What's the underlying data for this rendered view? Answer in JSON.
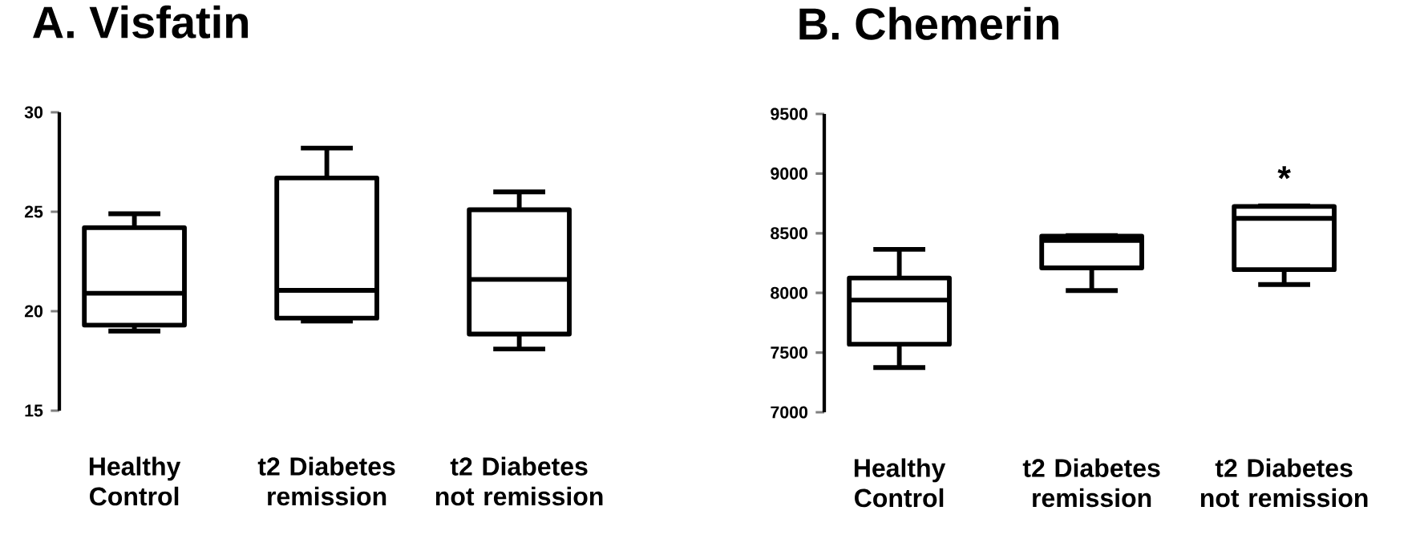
{
  "chart_data": [
    {
      "type": "box",
      "title": "A. Visfatin",
      "categories": [
        "Healthy Control",
        "t2 Diabetes remission",
        "t2 Diabetes not remission"
      ],
      "boxes": [
        {
          "low": 19.0,
          "q1": 19.3,
          "median": 20.9,
          "q3": 24.2,
          "high": 24.9
        },
        {
          "low": 19.5,
          "q1": 19.65,
          "median": 21.05,
          "q3": 26.7,
          "high": 28.2
        },
        {
          "low": 18.1,
          "q1": 18.85,
          "median": 21.6,
          "q3": 25.1,
          "high": 26.0
        }
      ],
      "ylim": [
        15,
        30
      ],
      "yticks": [
        15,
        20,
        25,
        30
      ]
    },
    {
      "type": "box",
      "title": "B. Chemerin",
      "categories": [
        "Healthy Control",
        "t2 Diabetes remission",
        "t2 Diabetes not remission"
      ],
      "boxes": [
        {
          "low": 7375,
          "q1": 7570,
          "median": 7940,
          "q3": 8125,
          "high": 8365
        },
        {
          "low": 8020,
          "q1": 8210,
          "median": 8440,
          "q3": 8475,
          "high": 8480
        },
        {
          "low": 8070,
          "q1": 8195,
          "median": 8625,
          "q3": 8725,
          "high": 8730
        }
      ],
      "ylim": [
        7000,
        9500
      ],
      "yticks": [
        7000,
        7500,
        8000,
        8500,
        9000,
        9500
      ],
      "annotations": [
        "*"
      ]
    }
  ]
}
